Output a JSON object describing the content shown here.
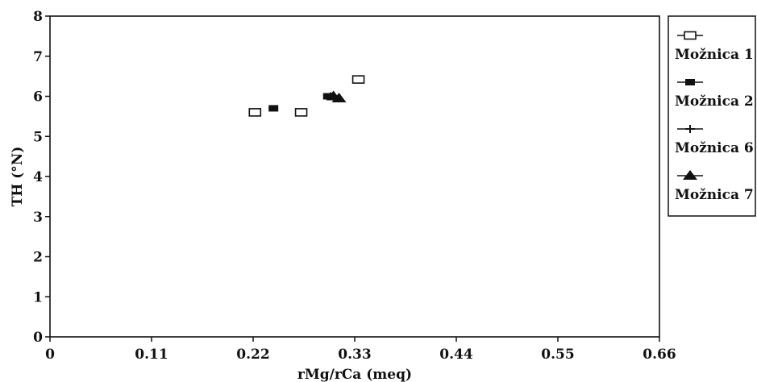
{
  "chart_data": {
    "type": "scatter",
    "xlabel": "rMg/rCa (meq)",
    "ylabel": "TH (°N)",
    "xlim": [
      0,
      0.66
    ],
    "ylim": [
      0,
      8
    ],
    "x_ticks": [
      "0",
      "0.11",
      "0.22",
      "0.33",
      "0.44",
      "0.55",
      "0.66"
    ],
    "y_ticks": [
      "0",
      "1",
      "2",
      "3",
      "4",
      "5",
      "6",
      "7",
      "8"
    ],
    "grid": false,
    "legend_position": "right",
    "series": [
      {
        "name": "Možnica 1",
        "marker": "open-square",
        "points": [
          {
            "x": 0.222,
            "y": 5.6
          },
          {
            "x": 0.272,
            "y": 5.6
          },
          {
            "x": 0.334,
            "y": 6.42
          }
        ]
      },
      {
        "name": "Možnica 2",
        "marker": "filled-square",
        "points": [
          {
            "x": 0.242,
            "y": 5.7
          },
          {
            "x": 0.301,
            "y": 6.0
          }
        ]
      },
      {
        "name": "Možnica 6",
        "marker": "plus",
        "points": [
          {
            "x": 0.304,
            "y": 6.0
          }
        ]
      },
      {
        "name": "Možnica 7",
        "marker": "filled-triangle",
        "points": [
          {
            "x": 0.307,
            "y": 6.0
          },
          {
            "x": 0.313,
            "y": 5.95
          }
        ]
      }
    ]
  }
}
